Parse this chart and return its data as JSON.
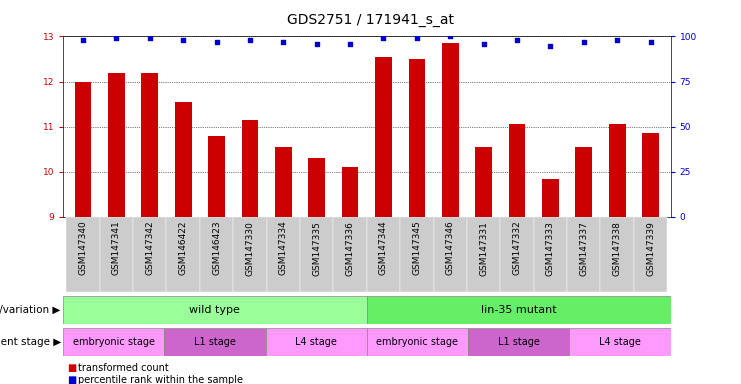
{
  "title": "GDS2751 / 171941_s_at",
  "samples": [
    "GSM147340",
    "GSM147341",
    "GSM147342",
    "GSM146422",
    "GSM146423",
    "GSM147330",
    "GSM147334",
    "GSM147335",
    "GSM147336",
    "GSM147344",
    "GSM147345",
    "GSM147346",
    "GSM147331",
    "GSM147332",
    "GSM147333",
    "GSM147337",
    "GSM147338",
    "GSM147339"
  ],
  "bar_values": [
    12.0,
    12.2,
    12.2,
    11.55,
    10.8,
    11.15,
    10.55,
    10.3,
    10.1,
    12.55,
    12.5,
    12.85,
    10.55,
    11.05,
    9.85,
    10.55,
    11.05,
    10.85
  ],
  "percentile_values": [
    98,
    99,
    99,
    98,
    97,
    98,
    97,
    96,
    96,
    99,
    99,
    100,
    96,
    98,
    95,
    97,
    98,
    97
  ],
  "ylim_left": [
    9,
    13
  ],
  "ylim_right": [
    0,
    100
  ],
  "yticks_left": [
    9,
    10,
    11,
    12,
    13
  ],
  "yticks_right": [
    0,
    25,
    50,
    75,
    100
  ],
  "bar_color": "#CC0000",
  "dot_color": "#0000CC",
  "title_fontsize": 10,
  "tick_fontsize": 6.5,
  "label_fontsize": 7.5,
  "genotype_label": "genotype/variation",
  "stage_label": "development stage",
  "legend_bar": "transformed count",
  "legend_dot": "percentile rank within the sample",
  "wild_type_label": "wild type",
  "mutant_label": "lin-35 mutant",
  "stages": [
    "embryonic stage",
    "L1 stage",
    "L4 stage",
    "embryonic stage",
    "L1 stage",
    "L4 stage"
  ],
  "wild_color": "#99FF99",
  "mutant_color": "#66EE66",
  "stage_embryonic_color": "#FF99FF",
  "stage_L1_color": "#CC66CC",
  "stage_L4_color": "#FF99FF",
  "tick_bg_color": "#CCCCCC",
  "annotation_fontsize": 8,
  "stage_fontsize": 7
}
